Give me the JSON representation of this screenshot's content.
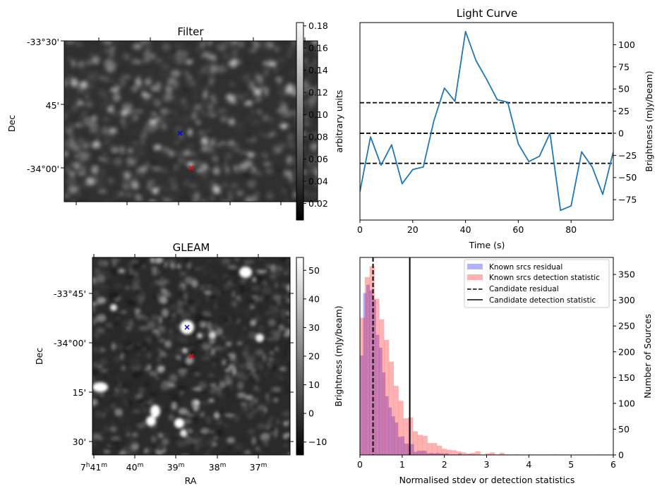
{
  "figure": {
    "panels": [
      "Filter",
      "Light Curve",
      "GLEAM",
      "Histogram"
    ]
  },
  "chart_data": [
    {
      "id": "filter",
      "type": "heatmap",
      "title": "Filter",
      "xlabel": "",
      "ylabel": "Dec",
      "yticks": [
        "-33°30'",
        "45'",
        "-34°00'"
      ],
      "colormap": "gray",
      "colorbar": {
        "label": "arbitrary units",
        "range": [
          0.005,
          0.183
        ],
        "ticks": [
          "0.02",
          "0.04",
          "0.06",
          "0.08",
          "0.10",
          "0.12",
          "0.14",
          "0.16",
          "0.18"
        ],
        "tick_values": [
          0.02,
          0.04,
          0.06,
          0.08,
          0.1,
          0.12,
          0.14,
          0.16,
          0.18
        ]
      },
      "markers": [
        {
          "name": "known-source",
          "symbol": "x",
          "color": "#0000ff"
        },
        {
          "name": "candidate",
          "symbol": "x",
          "color": "#ff0000"
        }
      ]
    },
    {
      "id": "light_curve",
      "type": "line",
      "title": "Light Curve",
      "xlabel": "Time (s)",
      "ylabel": "Brightness (mJy/beam)",
      "xlim": [
        0,
        96
      ],
      "ylim": [
        -98,
        125
      ],
      "xticks": [
        0,
        20,
        40,
        60,
        80
      ],
      "yticks": [
        100,
        75,
        50,
        25,
        0,
        -25,
        -50,
        -75
      ],
      "ytick_labels": [
        "100",
        "75",
        "50",
        "25",
        "0",
        "−25",
        "−50",
        "−75"
      ],
      "series": [
        {
          "name": "light curve",
          "color": "#1f77b4",
          "x": [
            0,
            4,
            8,
            12,
            16,
            20,
            24,
            28,
            32,
            36,
            40,
            44,
            48,
            52,
            56,
            60,
            64,
            68,
            72,
            76,
            80,
            84,
            88,
            92,
            96
          ],
          "y": [
            -66,
            -4,
            -36,
            -13,
            -57,
            -41,
            -38,
            14,
            51,
            36,
            115,
            82,
            61,
            38,
            35,
            -12,
            -32,
            -26,
            0,
            -87,
            -82,
            -21,
            -38,
            -69,
            -21
          ]
        }
      ],
      "hlines": [
        {
          "y": 34.5,
          "style": "dashed",
          "color": "#000000"
        },
        {
          "y": 0,
          "style": "dashed",
          "color": "#000000"
        },
        {
          "y": -34,
          "style": "dashed",
          "color": "#000000"
        }
      ]
    },
    {
      "id": "gleam",
      "type": "heatmap",
      "title": "GLEAM",
      "xlabel": "RA",
      "ylabel": "Dec",
      "xticks": [
        {
          "main": "7",
          "sup1": "h",
          "main2": "41",
          "sup2": "m"
        },
        {
          "main": "",
          "sup1": "",
          "main2": "40",
          "sup2": "m"
        },
        {
          "main": "",
          "sup1": "",
          "main2": "39",
          "sup2": "m"
        },
        {
          "main": "",
          "sup1": "",
          "main2": "38",
          "sup2": "m"
        },
        {
          "main": "",
          "sup1": "",
          "main2": "37",
          "sup2": "m"
        }
      ],
      "yticks": [
        "-33°45'",
        "-34°00'",
        "15'",
        "30'"
      ],
      "colormap": "gray",
      "colorbar": {
        "label": "Brightness (mJy/beam)",
        "range": [
          -14.5,
          54.5
        ],
        "ticks": [
          "50",
          "40",
          "30",
          "20",
          "10",
          "0",
          "−10"
        ],
        "tick_values": [
          50,
          40,
          30,
          20,
          10,
          0,
          -10
        ]
      },
      "markers": [
        {
          "name": "known-source",
          "symbol": "x",
          "color": "#0000ff"
        },
        {
          "name": "candidate",
          "symbol": "x",
          "color": "#ff0000"
        }
      ]
    },
    {
      "id": "histogram",
      "type": "bar",
      "title": "",
      "xlabel": "Normalised stdev or detection statistics",
      "ylabel": "Number of Sources",
      "xlim": [
        0,
        6
      ],
      "ylim": [
        0,
        383
      ],
      "xticks": [
        0,
        1,
        2,
        3,
        4,
        5,
        6
      ],
      "yticks": [
        0,
        50,
        100,
        150,
        200,
        250,
        300,
        350
      ],
      "legend": {
        "position": "top-right",
        "entries": [
          {
            "label": "Known srcs residual",
            "kind": "patch",
            "color": "rgba(0,0,255,0.3)"
          },
          {
            "label": "Known srcs detection statistic",
            "kind": "patch",
            "color": "rgba(255,0,0,0.3)"
          },
          {
            "label": "Candidate residual",
            "kind": "dashed-line",
            "color": "#000000"
          },
          {
            "label": "Candidate detection statistic",
            "kind": "solid-line",
            "color": "#000000"
          }
        ]
      },
      "series": [
        {
          "name": "Known srcs residual",
          "color": "rgba(0,0,255,0.3)",
          "bin_start": 0,
          "bin_width": 0.075,
          "counts": [
            193,
            314,
            330,
            319,
            301,
            233,
            208,
            160,
            114,
            92,
            75,
            63,
            35,
            36,
            22,
            22,
            21,
            6,
            8,
            8,
            8,
            3,
            4,
            3,
            4,
            3,
            3,
            3,
            0,
            1,
            0,
            3,
            0,
            0,
            1,
            0,
            0,
            0,
            0,
            0,
            0,
            0,
            0,
            0,
            0,
            0,
            0,
            0,
            0,
            1
          ]
        },
        {
          "name": "Known srcs detection statistic",
          "color": "rgba(255,0,0,0.3)",
          "bin_start": 0,
          "bin_width": 0.114,
          "counts": [
            266,
            345,
            366,
            303,
            263,
            223,
            181,
            134,
            105,
            71,
            73,
            46,
            39,
            37,
            23,
            23,
            18,
            12,
            10,
            9,
            7,
            5,
            3,
            4,
            7,
            0,
            3,
            5,
            1,
            4,
            1,
            0,
            0,
            0,
            0,
            1,
            0,
            0,
            0,
            0,
            1,
            0,
            0,
            0,
            0,
            0,
            0,
            0,
            0,
            1
          ]
        }
      ],
      "vlines": [
        {
          "name": "Candidate residual",
          "x": 0.31,
          "style": "dashed",
          "color": "#000000"
        },
        {
          "name": "Candidate detection statistic",
          "x": 1.18,
          "style": "solid",
          "color": "#000000"
        }
      ]
    }
  ]
}
